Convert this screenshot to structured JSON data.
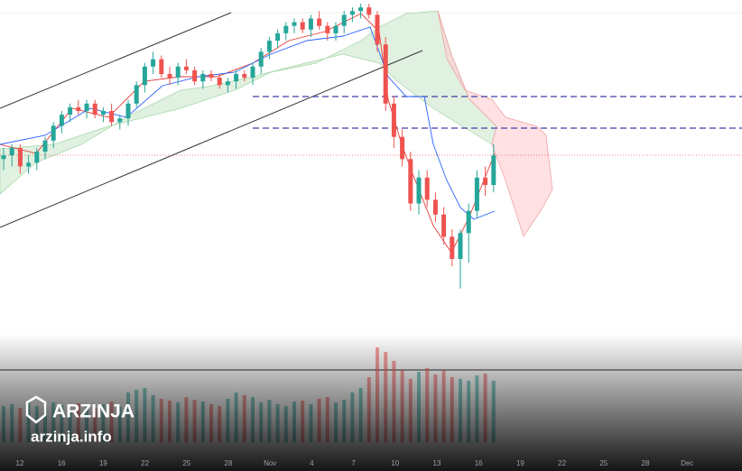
{
  "chart_data": {
    "type": "candlestick",
    "open": [
      57,
      58,
      60,
      55,
      56,
      59,
      62,
      66,
      69,
      71,
      70,
      72,
      69,
      70,
      67,
      68,
      72,
      77,
      82,
      84,
      80,
      79,
      82,
      81,
      78,
      80,
      79,
      77,
      78,
      80,
      79,
      82,
      86,
      89,
      91,
      93,
      94,
      92,
      95,
      93,
      91,
      93,
      96,
      97,
      98,
      96,
      88,
      72,
      63,
      57,
      45,
      52,
      46,
      42,
      36,
      30,
      37,
      43,
      52,
      50
    ],
    "high": [
      60,
      61,
      61,
      58,
      60,
      63,
      67,
      70,
      72,
      73,
      73,
      73,
      71,
      72,
      69,
      73,
      78,
      83,
      86,
      85,
      82,
      83,
      84,
      82,
      81,
      81,
      80,
      79,
      81,
      81,
      83,
      87,
      90,
      92,
      94,
      95,
      95,
      96,
      97,
      94,
      94,
      97,
      98,
      99,
      99,
      97,
      90,
      74,
      65,
      59,
      54,
      54,
      48,
      44,
      38,
      38,
      45,
      54,
      55,
      61
    ],
    "low": [
      54,
      55,
      53,
      53,
      54,
      57,
      60,
      64,
      67,
      69,
      68,
      68,
      67,
      66,
      65,
      66,
      71,
      75,
      80,
      79,
      77,
      77,
      80,
      77,
      76,
      78,
      76,
      75,
      76,
      78,
      77,
      80,
      84,
      87,
      89,
      91,
      91,
      90,
      92,
      89,
      89,
      91,
      94,
      95,
      95,
      86,
      70,
      60,
      55,
      43,
      42,
      44,
      40,
      34,
      28,
      22,
      29,
      41,
      47,
      48
    ],
    "close": [
      58,
      60,
      55,
      56,
      59,
      62,
      66,
      69,
      71,
      70,
      72,
      69,
      70,
      67,
      68,
      72,
      77,
      82,
      84,
      80,
      79,
      82,
      81,
      78,
      80,
      79,
      77,
      78,
      80,
      79,
      82,
      86,
      89,
      91,
      93,
      94,
      92,
      95,
      93,
      91,
      93,
      96,
      97,
      98,
      96,
      88,
      72,
      63,
      57,
      45,
      52,
      46,
      42,
      36,
      30,
      37,
      43,
      52,
      50,
      58
    ],
    "volume": [
      40,
      42,
      38,
      45,
      40,
      39,
      44,
      41,
      36,
      43,
      40,
      38,
      42,
      45,
      39,
      55,
      58,
      60,
      52,
      48,
      46,
      44,
      50,
      47,
      45,
      42,
      40,
      48,
      55,
      52,
      50,
      44,
      47,
      42,
      40,
      45,
      46,
      42,
      48,
      50,
      44,
      47,
      55,
      60,
      72,
      105,
      100,
      90,
      80,
      70,
      78,
      82,
      75,
      80,
      72,
      70,
      68,
      74,
      76,
      68
    ],
    "ylim": [
      0,
      100
    ],
    "volume_lim": [
      0,
      100
    ],
    "up_color": "#26a69a",
    "down_color": "#ef5350",
    "x_labels": [
      "12",
      "16",
      "19",
      "22",
      "25",
      "28",
      "Nov",
      "4",
      "7",
      "10",
      "13",
      "16",
      "19",
      "22",
      "25",
      "28",
      "Dec"
    ]
  },
  "watermark": {
    "brand": "ARZINJA",
    "site": "arzinja.info"
  }
}
